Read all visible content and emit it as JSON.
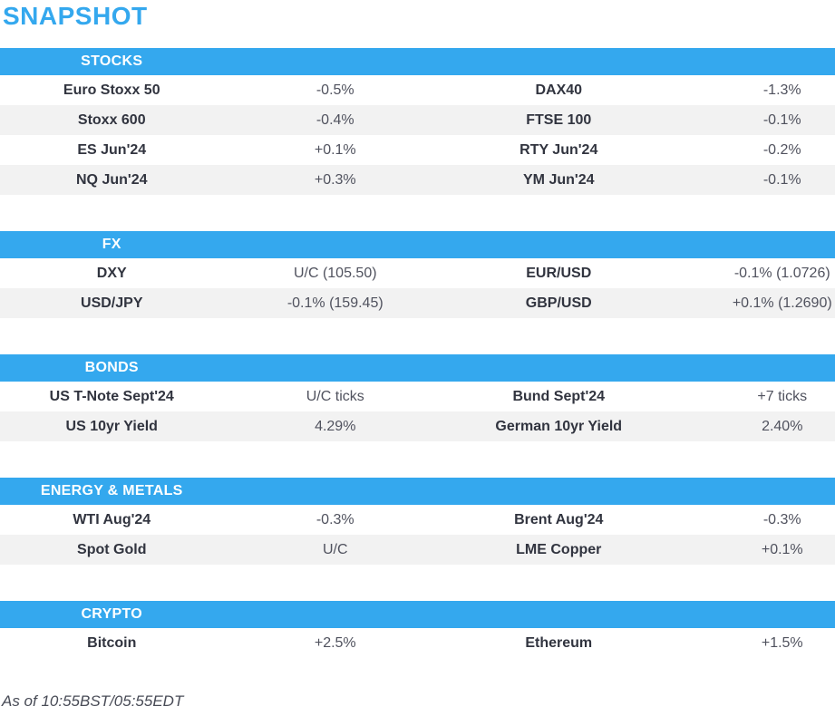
{
  "page": {
    "title": "SNAPSHOT",
    "footer": "As of 10:55BST/05:55EDT"
  },
  "colors": {
    "accent_blue": "#34a8ee",
    "header_text": "#ffffff",
    "label_text": "#31343f",
    "value_text": "#50525e",
    "row_alt_background": "#f2f2f2",
    "background": "#ffffff"
  },
  "sections": [
    {
      "id": "stocks",
      "header": "STOCKS",
      "rows": [
        {
          "label1": "Euro Stoxx 50",
          "value1": "-0.5%",
          "label2": "DAX40",
          "value2": "-1.3%"
        },
        {
          "label1": "Stoxx 600",
          "value1": "-0.4%",
          "label2": "FTSE 100",
          "value2": "-0.1%"
        },
        {
          "label1": "ES Jun'24",
          "value1": "+0.1%",
          "label2": "RTY Jun'24",
          "value2": "-0.2%"
        },
        {
          "label1": "NQ Jun'24",
          "value1": "+0.3%",
          "label2": "YM Jun'24",
          "value2": "-0.1%"
        }
      ]
    },
    {
      "id": "fx",
      "header": "FX",
      "rows": [
        {
          "label1": "DXY",
          "value1": "U/C (105.50)",
          "label2": "EUR/USD",
          "value2": "-0.1% (1.0726)"
        },
        {
          "label1": "USD/JPY",
          "value1": "-0.1% (159.45)",
          "label2": "GBP/USD",
          "value2": "+0.1% (1.2690)"
        }
      ]
    },
    {
      "id": "bonds",
      "header": "BONDS",
      "rows": [
        {
          "label1": "US T-Note Sept'24",
          "value1": "U/C ticks",
          "label2": "Bund Sept'24",
          "value2": "+7 ticks"
        },
        {
          "label1": "US 10yr Yield",
          "value1": "4.29%",
          "label2": "German 10yr Yield",
          "value2": "2.40%"
        }
      ]
    },
    {
      "id": "energy-metals",
      "header": "ENERGY & METALS",
      "rows": [
        {
          "label1": "WTI Aug'24",
          "value1": "-0.3%",
          "label2": "Brent Aug'24",
          "value2": "-0.3%"
        },
        {
          "label1": "Spot Gold",
          "value1": "U/C",
          "label2": "LME Copper",
          "value2": "+0.1%"
        }
      ]
    },
    {
      "id": "crypto",
      "header": "CRYPTO",
      "rows": [
        {
          "label1": "Bitcoin",
          "value1": "+2.5%",
          "label2": "Ethereum",
          "value2": "+1.5%"
        }
      ]
    }
  ]
}
